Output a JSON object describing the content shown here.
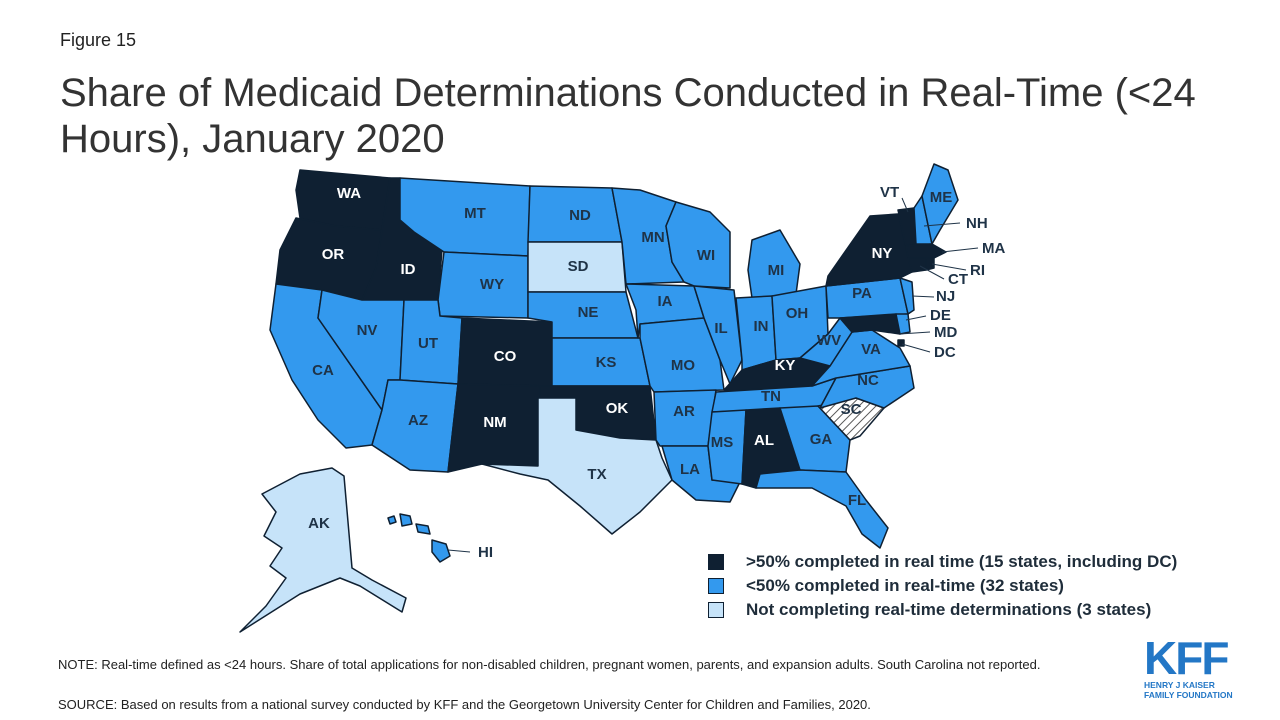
{
  "header": {
    "figure_label": "Figure 15",
    "title": "Share of Medicaid Determinations Conducted in Real-Time (<24 Hours), January 2020"
  },
  "legend": [
    {
      "key": "high",
      "label": ">50% completed in real time (15 states, including DC)",
      "color": "#0f2032"
    },
    {
      "key": "mid",
      "label": "<50% completed in real-time (32 states)",
      "color": "#3399ee"
    },
    {
      "key": "none",
      "label": "Not completing real-time determinations (3 states)",
      "color": "#c6e3f9"
    }
  ],
  "colors": {
    "high": "#0f2032",
    "mid": "#3399ee",
    "none": "#c6e3f9",
    "not_reported": "hatched",
    "border": "#0f2032",
    "logo": "#2377c6"
  },
  "states": {
    "WA": "high",
    "OR": "high",
    "ID": "high",
    "CO": "high",
    "NM": "high",
    "OK": "high",
    "KY": "high",
    "AL": "high",
    "NY": "high",
    "VT": "high",
    "MA": "high",
    "RI": "high",
    "CT": "high",
    "MD": "high",
    "DC": "high",
    "CA": "mid",
    "NV": "mid",
    "UT": "mid",
    "AZ": "mid",
    "MT": "mid",
    "WY": "mid",
    "ND": "mid",
    "NE": "mid",
    "KS": "mid",
    "MN": "mid",
    "IA": "mid",
    "MO": "mid",
    "AR": "mid",
    "LA": "mid",
    "WI": "mid",
    "IL": "mid",
    "MI": "mid",
    "IN": "mid",
    "OH": "mid",
    "TN": "mid",
    "MS": "mid",
    "GA": "mid",
    "FL": "mid",
    "NC": "mid",
    "VA": "mid",
    "WV": "mid",
    "PA": "mid",
    "NJ": "mid",
    "DE": "mid",
    "NH": "mid",
    "ME": "mid",
    "HI": "mid",
    "SD": "none",
    "TX": "none",
    "AK": "none",
    "SC": "not_reported"
  },
  "labels": {
    "WA": "WA",
    "OR": "OR",
    "ID": "ID",
    "MT": "MT",
    "WY": "WY",
    "ND": "ND",
    "SD": "SD",
    "NE": "NE",
    "KS": "KS",
    "OK": "OK",
    "TX": "TX",
    "NM": "NM",
    "CO": "CO",
    "UT": "UT",
    "NV": "NV",
    "CA": "CA",
    "AZ": "AZ",
    "MN": "MN",
    "IA": "IA",
    "MO": "MO",
    "AR": "AR",
    "LA": "LA",
    "WI": "WI",
    "IL": "IL",
    "MI": "MI",
    "IN": "IN",
    "OH": "OH",
    "KY": "KY",
    "TN": "TN",
    "MS": "MS",
    "AL": "AL",
    "GA": "GA",
    "FL": "FL",
    "SC": "SC",
    "NC": "NC",
    "VA": "VA",
    "WV": "WV",
    "PA": "PA",
    "NY": "NY",
    "VT": "VT",
    "NH": "NH",
    "ME": "ME",
    "MA": "MA",
    "RI": "RI",
    "CT": "CT",
    "NJ": "NJ",
    "DE": "DE",
    "MD": "MD",
    "DC": "DC",
    "AK": "AK",
    "HI": "HI"
  },
  "footer": {
    "note": "NOTE: Real-time defined as <24 hours. Share of total applications for non-disabled children, pregnant women, parents, and expansion adults. South Carolina not reported.",
    "source": "SOURCE: Based on results from a national survey conducted by KFF and the Georgetown University Center for Children and Families, 2020."
  },
  "logo": {
    "mark": "KFF",
    "line1": "HENRY J KAISER",
    "line2": "FAMILY FOUNDATION"
  }
}
